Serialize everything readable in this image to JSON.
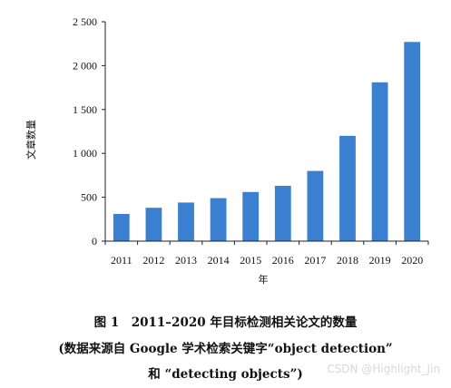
{
  "chart_data": {
    "type": "bar",
    "categories": [
      "2011",
      "2012",
      "2013",
      "2014",
      "2015",
      "2016",
      "2017",
      "2018",
      "2019",
      "2020"
    ],
    "values": [
      310,
      380,
      440,
      490,
      560,
      630,
      800,
      1200,
      1810,
      2270
    ],
    "ylabel": "文章数量",
    "xlabel": "年",
    "ylim": [
      0,
      2500
    ],
    "yticks": [
      0,
      500,
      1000,
      1500,
      2000,
      2500
    ],
    "ytick_labels": [
      "0",
      "500",
      "1 000",
      "1 500",
      "2 000",
      "2 500"
    ],
    "grid": false,
    "bar_color": "#3a7fd0"
  },
  "caption": {
    "line1": "图 1　2011–2020 年目标检测相关论文的数量",
    "line2": "(数据来源自 Google 学术检索关键字“object detection”",
    "line3": "和 “detecting objects”)"
  },
  "watermark": "CSDN @Highlight_Jin"
}
